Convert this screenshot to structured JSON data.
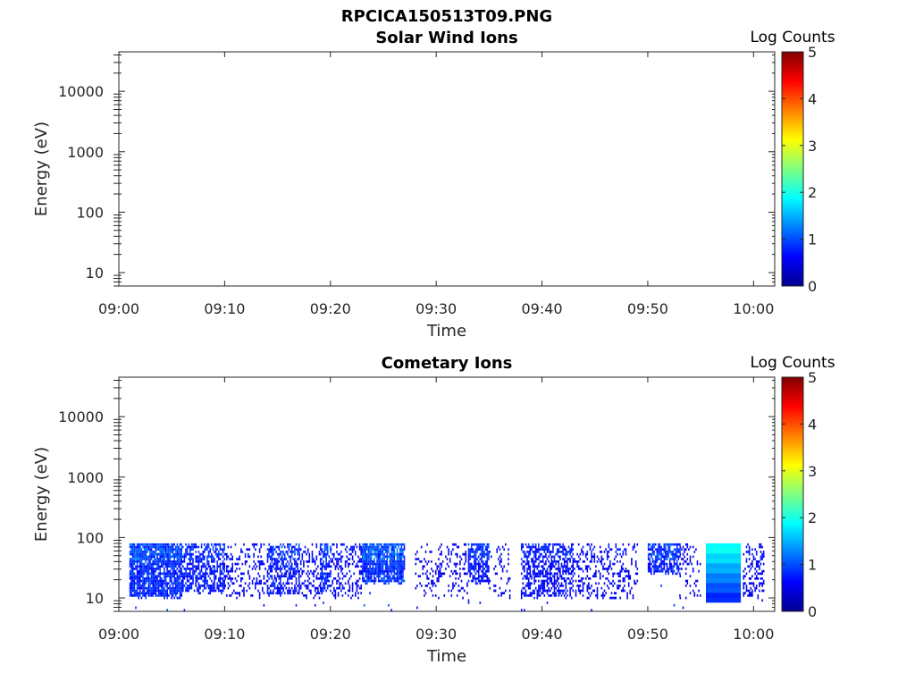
{
  "figure": {
    "title": "RPCICA150513T09.PNG"
  },
  "chart_data": [
    {
      "type": "heatmap",
      "title": "Solar Wind Ions",
      "xlabel": "Time",
      "ylabel": "Energy (eV)",
      "x_ticks": [
        "09:00",
        "09:10",
        "09:20",
        "09:30",
        "09:40",
        "09:50",
        "10:00"
      ],
      "xlim": [
        "09:00",
        "10:02"
      ],
      "y_scale": "log",
      "y_ticks": [
        "10",
        "100",
        "1000",
        "10000"
      ],
      "ylim": [
        6,
        45000
      ],
      "colorbar": {
        "label": "Log Counts",
        "ticks": [
          "0",
          "1",
          "2",
          "3",
          "4",
          "5"
        ],
        "range": [
          0,
          5
        ],
        "colormap": "jet"
      },
      "blocks": []
    },
    {
      "type": "heatmap",
      "title": "Cometary Ions",
      "xlabel": "Time",
      "ylabel": "Energy (eV)",
      "x_ticks": [
        "09:00",
        "09:10",
        "09:20",
        "09:30",
        "09:40",
        "09:50",
        "10:00"
      ],
      "xlim": [
        "09:00",
        "10:02"
      ],
      "y_scale": "log",
      "y_ticks": [
        "10",
        "100",
        "1000",
        "10000"
      ],
      "ylim": [
        6,
        45000
      ],
      "colorbar": {
        "label": "Log Counts",
        "ticks": [
          "0",
          "1",
          "2",
          "3",
          "4",
          "5"
        ],
        "range": [
          0,
          5
        ],
        "colormap": "jet"
      },
      "energy_max": 80,
      "blocks": [
        {
          "start": "09:01",
          "end": "09:06",
          "density": 0.85,
          "emin": 10,
          "level": 0.9
        },
        {
          "start": "09:06",
          "end": "09:10",
          "density": 0.6,
          "emin": 12,
          "level": 0.7
        },
        {
          "start": "09:10",
          "end": "09:14",
          "density": 0.25,
          "emin": 10,
          "level": 0.5
        },
        {
          "start": "09:14",
          "end": "09:17",
          "density": 0.55,
          "emin": 11,
          "level": 0.7
        },
        {
          "start": "09:17",
          "end": "09:19",
          "density": 0.3,
          "emin": 10,
          "level": 0.5
        },
        {
          "start": "09:19",
          "end": "09:20",
          "density": 0.6,
          "emin": 12,
          "level": 0.8
        },
        {
          "start": "09:20",
          "end": "09:23",
          "density": 0.3,
          "emin": 10,
          "level": 0.5
        },
        {
          "start": "09:23",
          "end": "09:27",
          "density": 0.85,
          "emin": 18,
          "level": 0.95
        },
        {
          "start": "09:28",
          "end": "09:33",
          "density": 0.2,
          "emin": 10,
          "level": 0.4
        },
        {
          "start": "09:33",
          "end": "09:35",
          "density": 0.7,
          "emin": 18,
          "level": 0.7
        },
        {
          "start": "09:35",
          "end": "09:37",
          "density": 0.15,
          "emin": 10,
          "level": 0.4
        },
        {
          "start": "09:38",
          "end": "09:43",
          "density": 0.55,
          "emin": 10,
          "level": 0.6
        },
        {
          "start": "09:43",
          "end": "09:48",
          "density": 0.3,
          "emin": 10,
          "level": 0.5
        },
        {
          "start": "09:48",
          "end": "09:49",
          "density": 0.2,
          "emin": 10,
          "level": 0.4
        },
        {
          "start": "09:50",
          "end": "09:53",
          "density": 0.75,
          "emin": 25,
          "level": 0.8
        },
        {
          "start": "09:53",
          "end": "09:55",
          "density": 0.2,
          "emin": 10,
          "level": 0.4
        },
        {
          "start": "09:59",
          "end": "10:01",
          "density": 0.35,
          "emin": 10,
          "level": 0.5
        }
      ],
      "solid_blocks": [
        {
          "start": "09:55.5",
          "end": "09:58.8",
          "emin": 8.5,
          "emax": 80,
          "level_top": 1.7,
          "level_bottom": 0.5
        }
      ]
    }
  ]
}
